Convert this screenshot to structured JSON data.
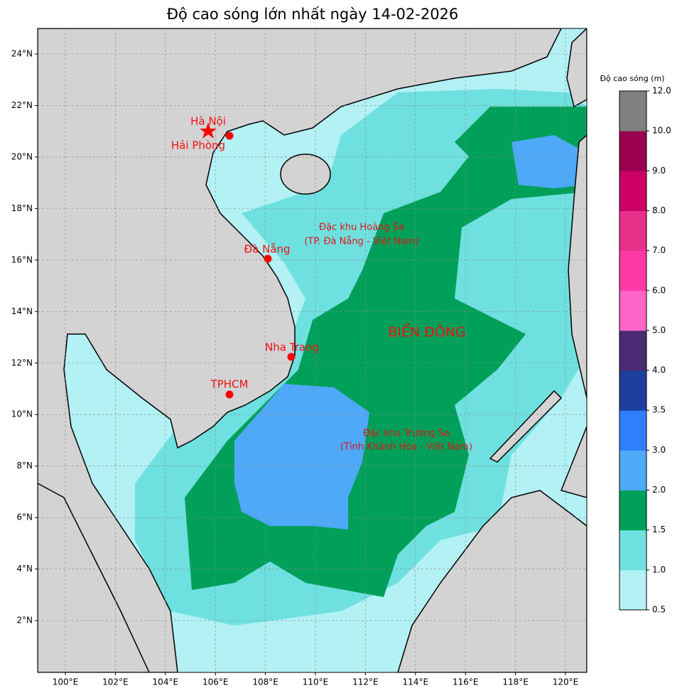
{
  "title": "Độ cao sóng lớn nhất ngày 14-02-2026",
  "map": {
    "lon_ticks": [
      {
        "value": 100,
        "label": "100°E"
      },
      {
        "value": 102,
        "label": "102°E"
      },
      {
        "value": 104,
        "label": "104°E"
      },
      {
        "value": 106,
        "label": "106°E"
      },
      {
        "value": 108,
        "label": "108°E"
      },
      {
        "value": 110,
        "label": "110°E"
      },
      {
        "value": 112,
        "label": "112°E"
      },
      {
        "value": 114,
        "label": "114°E"
      },
      {
        "value": 116,
        "label": "116°E"
      },
      {
        "value": 118,
        "label": "118°E"
      },
      {
        "value": 120,
        "label": "120°E"
      }
    ],
    "lat_ticks": [
      {
        "value": 2,
        "label": "2°N"
      },
      {
        "value": 4,
        "label": "4°N"
      },
      {
        "value": 6,
        "label": "6°N"
      },
      {
        "value": 8,
        "label": "8°N"
      },
      {
        "value": 10,
        "label": "10°N"
      },
      {
        "value": 12,
        "label": "12°N"
      },
      {
        "value": 14,
        "label": "14°N"
      },
      {
        "value": 16,
        "label": "16°N"
      },
      {
        "value": 18,
        "label": "18°N"
      },
      {
        "value": 20,
        "label": "20°N"
      },
      {
        "value": 22,
        "label": "22°N"
      },
      {
        "value": 24,
        "label": "24°N"
      }
    ],
    "places": [
      "Hà Nội",
      "Hải Phòng",
      "Đà Nẵng",
      "Nha Trang",
      "TPHCM",
      "Đặc khu Hoàng Sa",
      "(TP. Đà Nẵng - Việt Nam)",
      "BIỂN ĐÔNG",
      "Đặc khu Trường Sa",
      "(Tỉnh Khánh Hòa - Việt Nam)"
    ]
  },
  "colorbar": {
    "label": "Độ cao sóng (m)",
    "levels": [
      {
        "value": 0.5,
        "label": "0.5"
      },
      {
        "value": 1,
        "label": "1.0"
      },
      {
        "value": 1.5,
        "label": "1.5"
      },
      {
        "value": 2,
        "label": "2.0"
      },
      {
        "value": 3,
        "label": "3.0"
      },
      {
        "value": 3.5,
        "label": "3.5"
      },
      {
        "value": 4,
        "label": "4.0"
      },
      {
        "value": 5,
        "label": "5.0"
      },
      {
        "value": 6,
        "label": "6.0"
      },
      {
        "value": 7,
        "label": "7.0"
      },
      {
        "value": 8,
        "label": "8.0"
      },
      {
        "value": 9,
        "label": "9.0"
      },
      {
        "value": 10,
        "label": "10.0"
      },
      {
        "value": 12,
        "label": "12.0"
      }
    ],
    "colors": [
      "#b3f1f5",
      "#6fe0e0",
      "#00a05a",
      "#4ea9f8",
      "#2f7ffc",
      "#1f3f9c",
      "#4a2a73",
      "#ff66c8",
      "#ff3aa6",
      "#e8318b",
      "#cc0066",
      "#990050",
      "#808080"
    ]
  }
}
